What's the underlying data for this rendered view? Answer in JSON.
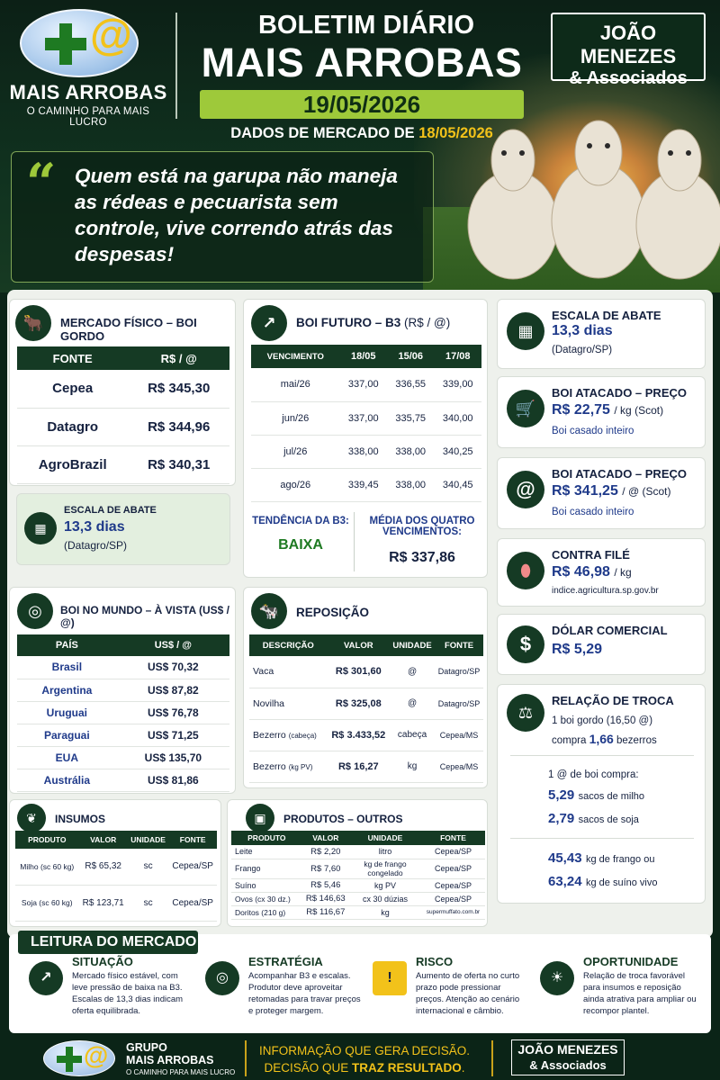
{
  "header": {
    "brand_name": "MAIS ARROBAS",
    "brand_tagline": "O CAMINHO PARA MAIS LUCRO",
    "title_line1": "BOLETIM DIÁRIO",
    "title_line2": "MAIS ARROBAS",
    "date": "19/05/2026",
    "data_label": "DADOS DE MERCADO DE",
    "data_date": "18/05/2026",
    "partner_line1": "JOÃO MENEZES",
    "partner_line2": "& Associados",
    "quote": "Quem está na garupa não maneja as rédeas e pecuarista sem controle, vive correndo atrás das despesas!"
  },
  "mercado_fisico": {
    "title": "MERCADO FÍSICO – BOI GORDO",
    "col1": "FONTE",
    "col2": "R$ / @",
    "rows": [
      {
        "fonte": "Cepea",
        "valor": "R$ 345,30"
      },
      {
        "fonte": "Datagro",
        "valor": "R$ 344,96"
      },
      {
        "fonte": "AgroBrazil",
        "valor": "R$ 340,31"
      }
    ]
  },
  "escala_left": {
    "title": "ESCALA DE ABATE",
    "value": "13,3 dias",
    "source": "(Datagro/SP)"
  },
  "boi_futuro": {
    "title": "BOI FUTURO – B3",
    "unit": "(R$ / @)",
    "headers": [
      "VENCIMENTO",
      "18/05",
      "15/06",
      "17/08"
    ],
    "rows": [
      [
        "mai/26",
        "337,00",
        "336,55",
        "339,00"
      ],
      [
        "jun/26",
        "337,00",
        "335,75",
        "340,00"
      ],
      [
        "jul/26",
        "338,00",
        "338,00",
        "340,25"
      ],
      [
        "ago/26",
        "339,45",
        "338,00",
        "340,45"
      ]
    ],
    "trend_label": "TENDÊNCIA DA B3:",
    "trend_value": "BAIXA",
    "avg_label": "MÉDIA DOS QUATRO VENCIMENTOS:",
    "avg_value": "R$ 337,86"
  },
  "boi_mundo": {
    "title": "BOI NO MUNDO – À VISTA (US$ / @)",
    "col1": "PAÍS",
    "col2": "US$ / @",
    "rows": [
      {
        "pais": "Brasil",
        "valor": "US$ 70,32"
      },
      {
        "pais": "Argentina",
        "valor": "US$ 87,82"
      },
      {
        "pais": "Uruguai",
        "valor": "US$ 76,78"
      },
      {
        "pais": "Paraguai",
        "valor": "US$ 71,25"
      },
      {
        "pais": "EUA",
        "valor": "US$ 135,70"
      },
      {
        "pais": "Austrália",
        "valor": "US$ 81,86"
      }
    ]
  },
  "reposicao": {
    "title": "REPOSIÇÃO",
    "headers": [
      "DESCRIÇÃO",
      "VALOR",
      "UNIDADE",
      "FONTE"
    ],
    "rows": [
      {
        "d": "Vaca",
        "ds": "",
        "v": "R$ 301,60",
        "u": "@",
        "f": "Datagro/SP"
      },
      {
        "d": "Novilha",
        "ds": "",
        "v": "R$ 325,08",
        "u": "@",
        "f": "Datagro/SP"
      },
      {
        "d": "Bezerro",
        "ds": "(cabeça)",
        "v": "R$ 3.433,52",
        "u": "cabeça",
        "f": "Cepea/MS"
      },
      {
        "d": "Bezerro",
        "ds": "(kg PV)",
        "v": "R$ 16,27",
        "u": "kg",
        "f": "Cepea/MS"
      }
    ]
  },
  "insumos": {
    "title": "INSUMOS",
    "headers": [
      "PRODUTO",
      "VALOR",
      "UNIDADE",
      "FONTE"
    ],
    "rows": [
      {
        "p": "Milho (sc 60 kg)",
        "v": "R$ 65,32",
        "u": "sc",
        "f": "Cepea/SP"
      },
      {
        "p": "Soja (sc 60 kg)",
        "v": "R$ 123,71",
        "u": "sc",
        "f": "Cepea/SP"
      }
    ]
  },
  "produtos": {
    "title": "PRODUTOS – OUTROS",
    "headers": [
      "PRODUTO",
      "VALOR",
      "UNIDADE",
      "FONTE"
    ],
    "rows": [
      {
        "p": "Leite",
        "v": "R$ 2,20",
        "u": "litro",
        "f": "Cepea/SP"
      },
      {
        "p": "Frango",
        "v": "R$ 7,60",
        "u": "kg de frango congelado",
        "f": "Cepea/SP"
      },
      {
        "p": "Suíno",
        "v": "R$ 5,46",
        "u": "kg PV",
        "f": "Cepea/SP"
      },
      {
        "p": "Ovos (cx 30 dz.)",
        "v": "R$ 146,63",
        "u": "cx 30 dúzias",
        "f": "Cepea/SP"
      },
      {
        "p": "Doritos (210 g)",
        "v": "R$ 116,67",
        "u": "kg",
        "f": "supermuffato.com.br"
      }
    ]
  },
  "right": {
    "escala": {
      "title": "ESCALA DE ABATE",
      "value": "13,3 dias",
      "source": "(Datagro/SP)"
    },
    "atacado_kg": {
      "title": "BOI ATACADO – PREÇO",
      "value": "R$ 22,75",
      "unit": "/ kg (Scot)",
      "note": "Boi casado inteiro"
    },
    "atacado_arroba": {
      "title": "BOI ATACADO – PREÇO",
      "value": "R$ 341,25",
      "unit": "/ @ (Scot)",
      "note": "Boi casado inteiro"
    },
    "contra_file": {
      "title": "CONTRA FILÉ",
      "value": "R$ 46,98",
      "unit": "/ kg",
      "note": "indice.agricultura.sp.gov.br"
    },
    "dolar": {
      "title": "DÓLAR COMERCIAL",
      "value": "R$ 5,29"
    },
    "troca": {
      "title": "RELAÇÃO DE TROCA",
      "l1": "1 boi gordo (16,50 @)",
      "l2a": "compra",
      "l2v": "1,66",
      "l2b": "bezerros",
      "l3": "1 @ de boi compra:",
      "milho_v": "5,29",
      "milho_u": "sacos de milho",
      "soja_v": "2,79",
      "soja_u": "sacos de soja",
      "frango_v": "45,43",
      "frango_u": "kg de frango ou",
      "suino_v": "63,24",
      "suino_u": "kg de suíno vivo"
    }
  },
  "leitura": {
    "title": "LEITURA DO MERCADO",
    "items": [
      {
        "title": "SITUAÇÃO",
        "text": "Mercado físico estável, com leve pressão de baixa na B3. Escalas de 13,3 dias indicam oferta equilibrada."
      },
      {
        "title": "ESTRATÉGIA",
        "text": "Acompanhar B3 e escalas. Produtor deve aproveitar retomadas para travar preços e proteger margem."
      },
      {
        "title": "RISCO",
        "text": "Aumento de oferta no curto prazo pode pressionar preços. Atenção ao cenário internacional e câmbio."
      },
      {
        "title": "OPORTUNIDADE",
        "text": "Relação de troca favorável para insumos e reposição ainda atrativa para ampliar ou recompor plantel."
      }
    ]
  },
  "footer": {
    "g1": "GRUPO",
    "g2": "MAIS ARROBAS",
    "g3": "O CAMINHO PARA MAIS LUCRO",
    "m1": "INFORMAÇÃO QUE GERA DECISÃO.",
    "m2a": "DECISÃO QUE ",
    "m2b": "TRAZ RESULTADO",
    "m2c": ".",
    "p1": "JOÃO MENEZES",
    "p2": "& Associados"
  }
}
